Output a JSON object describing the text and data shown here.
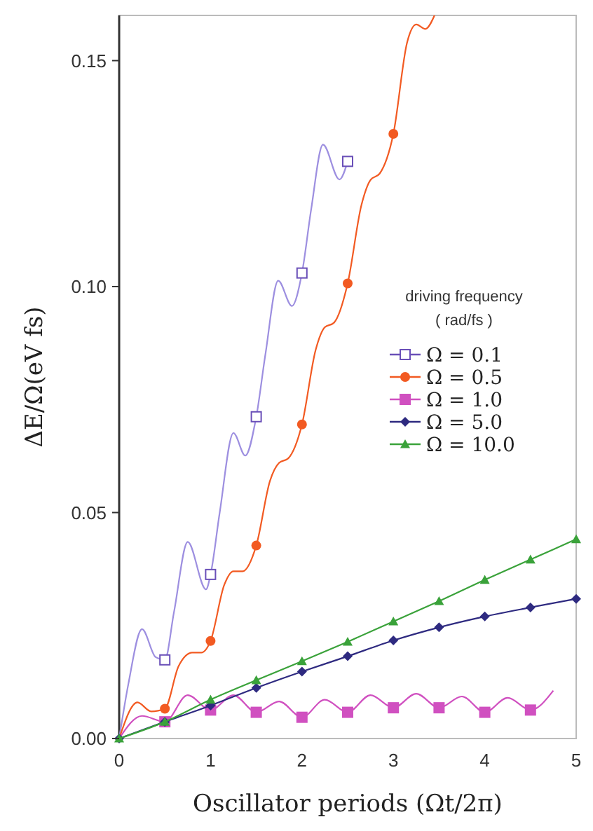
{
  "chart_data": {
    "type": "line",
    "xlabel": "Oscillator periods (Ωt/2π)",
    "ylabel": "ΔE/Ω(eV fs)",
    "legend_title": "driving frequency\n( rad/fs )",
    "legend": "right",
    "grid": false,
    "xlim": [
      0,
      5
    ],
    "xticks": [
      0,
      1,
      2,
      3,
      4,
      5
    ],
    "ylim": [
      0,
      0.16
    ],
    "yticks": [
      {
        "value": 0,
        "label": "0.00"
      },
      {
        "value": 0.05,
        "label": "0.05"
      },
      {
        "value": 0.1,
        "label": "0.10"
      },
      {
        "value": 0.15,
        "label": "0.15"
      }
    ],
    "series": [
      {
        "marker": "none",
        "color": "#9d8fe0",
        "x": [
          0,
          0.1,
          0.25,
          0.4,
          0.5,
          0.6,
          0.75,
          0.95,
          1.0,
          1.1,
          1.25,
          1.38,
          1.5,
          1.6,
          1.74,
          1.89,
          2.0,
          2.1,
          2.23,
          2.41,
          2.5
        ],
        "values": [
          0,
          0.012,
          0.0242,
          0.018,
          0.0174,
          0.028,
          0.0435,
          0.033,
          0.0363,
          0.05,
          0.0676,
          0.0626,
          0.0712,
          0.085,
          0.1013,
          0.0957,
          0.103,
          0.117,
          0.1314,
          0.1237,
          0.1277
        ]
      },
      {
        "marker": "none",
        "color": "#f25a22",
        "x": [
          0,
          0.2,
          0.35,
          0.5,
          0.65,
          0.8,
          0.9,
          1.0,
          1.15,
          1.25,
          1.35,
          1.5,
          1.65,
          1.75,
          1.85,
          2.0,
          2.15,
          2.25,
          2.35,
          2.5,
          2.65,
          2.75,
          2.85,
          3.0,
          3.15,
          3.25,
          3.35,
          3.45
        ],
        "values": [
          0,
          0.008,
          0.006,
          0.0066,
          0.016,
          0.019,
          0.019,
          0.0216,
          0.034,
          0.037,
          0.037,
          0.0427,
          0.057,
          0.061,
          0.062,
          0.0695,
          0.086,
          0.091,
          0.092,
          0.1007,
          0.118,
          0.1236,
          0.125,
          0.1338,
          0.154,
          0.158,
          0.157,
          0.16
        ]
      },
      {
        "marker": "none",
        "color": "#d050c0",
        "x": [
          0,
          0.25,
          0.5,
          0.75,
          1,
          1.25,
          1.5,
          1.75,
          2,
          2.25,
          2.5,
          2.75,
          3,
          3.25,
          3.5,
          3.75,
          4,
          4.25,
          4.5,
          4.75
        ],
        "values": [
          0,
          0.005,
          0.0037,
          0.0096,
          0.0063,
          0.0096,
          0.0058,
          0.0082,
          0.0047,
          0.0086,
          0.0058,
          0.0096,
          0.0068,
          0.0099,
          0.0068,
          0.0093,
          0.0058,
          0.009,
          0.0063,
          0.0106
        ]
      },
      {
        "type": "scatter",
        "name": "Ω = 0.1",
        "marker": "square",
        "color": "#6a4fb8",
        "x": [
          0.5,
          1,
          1.5,
          2,
          2.5
        ],
        "values": [
          0.0174,
          0.0363,
          0.0712,
          0.103,
          0.1277
        ]
      },
      {
        "type": "scatter",
        "name": "Ω = 0.5",
        "marker": "circle",
        "color": "#f25a22",
        "x": [
          0.5,
          1,
          1.5,
          2,
          2.5,
          3
        ],
        "values": [
          0.0066,
          0.0216,
          0.0427,
          0.0695,
          0.1007,
          0.1338
        ]
      },
      {
        "type": "scatter",
        "name": "Ω = 1.0",
        "marker": "square",
        "color": "#d050c0",
        "x": [
          0.5,
          1,
          1.5,
          2,
          2.5,
          3,
          3.5,
          4,
          4.5
        ],
        "values": [
          0.0037,
          0.0063,
          0.0058,
          0.0047,
          0.0058,
          0.0068,
          0.0068,
          0.0058,
          0.0063
        ]
      },
      {
        "name": "Ω = 5.0",
        "marker": "diamond",
        "color": "#2e2a80",
        "x": [
          0,
          0.5,
          1,
          1.5,
          2,
          2.5,
          3,
          3.5,
          4,
          4.5,
          5
        ],
        "values": [
          0,
          0.0037,
          0.0073,
          0.0112,
          0.0148,
          0.0182,
          0.0217,
          0.0246,
          0.027,
          0.029,
          0.0309
        ]
      },
      {
        "name": "Ω = 10.0",
        "marker": "triangle",
        "color": "#3aa23a",
        "x": [
          0,
          0.5,
          1,
          1.5,
          2,
          2.5,
          3,
          3.5,
          4,
          4.5,
          5
        ],
        "values": [
          0,
          0.0037,
          0.0086,
          0.0129,
          0.0171,
          0.0214,
          0.0259,
          0.0304,
          0.0351,
          0.0396,
          0.0441
        ]
      }
    ]
  }
}
